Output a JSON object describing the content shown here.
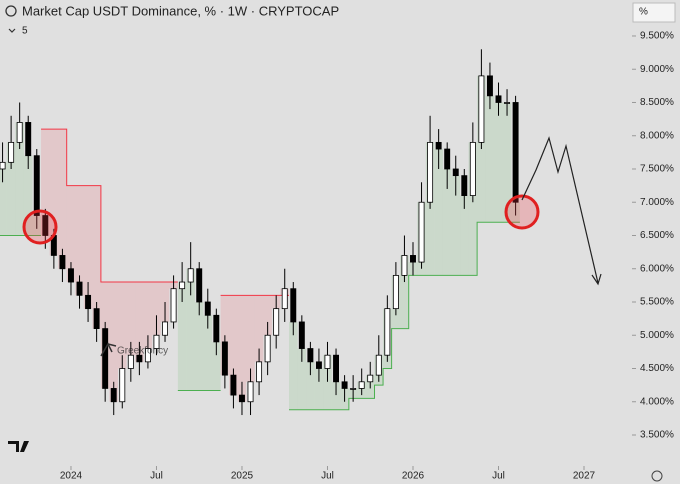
{
  "chart_data": {
    "type": "candlestick",
    "title": "Market Cap USDT Dominance, % · 1W · CRYPTOCAP",
    "subtitle": "5",
    "unit_label": "%",
    "watermark": "Greekfoncy",
    "x": [
      2023.6,
      2023.65,
      2023.7,
      2023.75,
      2023.8,
      2023.85,
      2023.9,
      2023.95,
      2024.0,
      2024.05,
      2024.1,
      2024.15,
      2024.2,
      2024.25,
      2024.3,
      2024.35,
      2024.4,
      2024.45,
      2024.5,
      2024.55,
      2024.6,
      2024.65,
      2024.7,
      2024.75,
      2024.8,
      2024.85,
      2024.9,
      2024.95,
      2025.0,
      2025.05,
      2025.1,
      2025.15,
      2025.2,
      2025.25,
      2025.3,
      2025.35,
      2025.4,
      2025.45,
      2025.5,
      2025.55,
      2025.6,
      2025.65,
      2025.7,
      2025.75,
      2025.8,
      2025.85,
      2025.9,
      2025.95,
      2026.0,
      2026.05,
      2026.1,
      2026.15,
      2026.2,
      2026.25,
      2026.3,
      2026.35,
      2026.4,
      2026.45,
      2026.5,
      2026.55,
      2026.6
    ],
    "open": [
      7.5,
      7.6,
      7.9,
      8.2,
      7.7,
      6.8,
      6.5,
      6.2,
      6.0,
      5.8,
      5.6,
      5.4,
      5.1,
      4.2,
      4.0,
      4.5,
      4.7,
      4.6,
      4.8,
      5.0,
      5.2,
      5.7,
      5.8,
      6.0,
      5.5,
      5.3,
      4.9,
      4.4,
      4.1,
      4.0,
      4.3,
      4.6,
      5.0,
      5.4,
      5.7,
      5.2,
      4.8,
      4.6,
      4.5,
      4.7,
      4.3,
      4.2,
      4.2,
      4.3,
      4.4,
      4.7,
      5.4,
      5.9,
      6.2,
      6.1,
      7.0,
      7.9,
      7.8,
      7.5,
      7.4,
      7.1,
      7.9,
      8.9,
      8.6,
      8.5,
      8.5
    ],
    "high": [
      7.9,
      8.3,
      8.5,
      8.3,
      7.8,
      6.9,
      6.6,
      6.3,
      6.1,
      5.9,
      5.8,
      5.5,
      5.2,
      4.3,
      4.7,
      4.9,
      4.9,
      5.0,
      5.3,
      5.5,
      5.9,
      6.1,
      6.4,
      6.1,
      5.7,
      5.4,
      5.0,
      4.5,
      4.3,
      4.5,
      4.8,
      5.2,
      5.6,
      6.0,
      5.8,
      5.3,
      4.9,
      4.8,
      4.9,
      4.8,
      4.4,
      4.4,
      4.5,
      4.6,
      5.0,
      5.6,
      6.1,
      6.5,
      6.4,
      7.3,
      8.3,
      8.1,
      7.9,
      7.7,
      7.5,
      8.2,
      9.3,
      9.1,
      8.8,
      8.7,
      8.6
    ],
    "low": [
      7.3,
      7.5,
      7.8,
      7.5,
      6.6,
      6.3,
      6.0,
      5.8,
      5.6,
      5.4,
      5.2,
      4.9,
      4.0,
      3.8,
      3.9,
      4.3,
      4.4,
      4.5,
      4.7,
      4.9,
      5.1,
      5.5,
      5.6,
      5.3,
      5.1,
      4.7,
      4.2,
      3.9,
      3.8,
      3.8,
      4.1,
      4.4,
      4.8,
      5.2,
      5.0,
      4.6,
      4.4,
      4.3,
      4.3,
      4.1,
      4.0,
      4.0,
      4.1,
      4.2,
      4.3,
      4.6,
      5.3,
      5.8,
      5.9,
      6.0,
      6.9,
      7.5,
      7.2,
      7.1,
      6.9,
      7.0,
      7.8,
      8.4,
      8.3,
      8.3,
      6.8
    ],
    "close": [
      7.6,
      7.9,
      8.2,
      7.7,
      6.8,
      6.5,
      6.2,
      6.0,
      5.8,
      5.6,
      5.4,
      5.1,
      4.2,
      4.0,
      4.5,
      4.7,
      4.6,
      4.8,
      5.0,
      5.2,
      5.7,
      5.8,
      6.0,
      5.5,
      5.3,
      4.9,
      4.4,
      4.1,
      4.0,
      4.3,
      4.6,
      5.0,
      5.4,
      5.7,
      5.2,
      4.8,
      4.6,
      4.5,
      4.7,
      4.3,
      4.2,
      4.2,
      4.3,
      4.4,
      4.7,
      5.4,
      5.9,
      6.2,
      6.1,
      7.0,
      7.9,
      7.8,
      7.5,
      7.4,
      7.1,
      7.9,
      8.9,
      8.6,
      8.5,
      8.5,
      7.0
    ],
    "up_color": "#ffffff",
    "down_color": "#000000",
    "supertrend_up": {
      "color": "#4caf50",
      "values": [
        6.5,
        6.5,
        6.5,
        6.5,
        6.5,
        null,
        null,
        null,
        null,
        null,
        null,
        null,
        null,
        null,
        null,
        null,
        null,
        null,
        null,
        null,
        null,
        4.17,
        4.17,
        4.17,
        4.17,
        4.17,
        null,
        null,
        null,
        null,
        null,
        null,
        null,
        null,
        3.88,
        3.88,
        3.88,
        3.88,
        3.88,
        3.88,
        3.88,
        4.05,
        4.05,
        4.05,
        4.25,
        4.5,
        5.1,
        5.1,
        5.9,
        5.9,
        5.9,
        5.9,
        5.9,
        5.9,
        5.9,
        5.9,
        6.7,
        6.7,
        6.7,
        6.7,
        6.7
      ]
    },
    "supertrend_down": {
      "color": "#f23645",
      "values": [
        null,
        null,
        null,
        null,
        null,
        8.1,
        8.1,
        8.1,
        7.25,
        7.25,
        7.25,
        7.25,
        5.8,
        5.8,
        5.8,
        5.8,
        5.8,
        5.8,
        5.8,
        5.8,
        5.8,
        null,
        null,
        null,
        null,
        null,
        5.6,
        5.6,
        5.6,
        5.6,
        5.6,
        5.6,
        5.6,
        5.6,
        null,
        null,
        null,
        null,
        null,
        null,
        null,
        null,
        null,
        null,
        null,
        null,
        null,
        null,
        null,
        null,
        null,
        null,
        null,
        null,
        null,
        null,
        null,
        null,
        null,
        null,
        null
      ]
    },
    "xlim": [
      2023.585,
      2027.269
    ],
    "ylim": [
      3.094,
      10.041
    ],
    "xticks": [
      {
        "value": 2024,
        "label": "2024"
      },
      {
        "value": 2024.5,
        "label": "Jul"
      },
      {
        "value": 2025,
        "label": "2025"
      },
      {
        "value": 2025.5,
        "label": "Jul"
      },
      {
        "value": 2026,
        "label": "2026"
      },
      {
        "value": 2026.5,
        "label": "Jul"
      },
      {
        "value": 2027,
        "label": "2027"
      }
    ],
    "yticks": [
      {
        "value": 3.5,
        "label": "3.500%"
      },
      {
        "value": 4,
        "label": "4.000%"
      },
      {
        "value": 4.5,
        "label": "4.500%"
      },
      {
        "value": 5,
        "label": "5.000%"
      },
      {
        "value": 5.5,
        "label": "5.500%"
      },
      {
        "value": 6,
        "label": "6.000%"
      },
      {
        "value": 6.5,
        "label": "6.500%"
      },
      {
        "value": 7,
        "label": "7.000%"
      },
      {
        "value": 7.5,
        "label": "7.500%"
      },
      {
        "value": 8,
        "label": "8.000%"
      },
      {
        "value": 8.5,
        "label": "8.500%"
      },
      {
        "value": 9,
        "label": "9.000%"
      },
      {
        "value": 9.5,
        "label": "9.500%"
      }
    ]
  }
}
